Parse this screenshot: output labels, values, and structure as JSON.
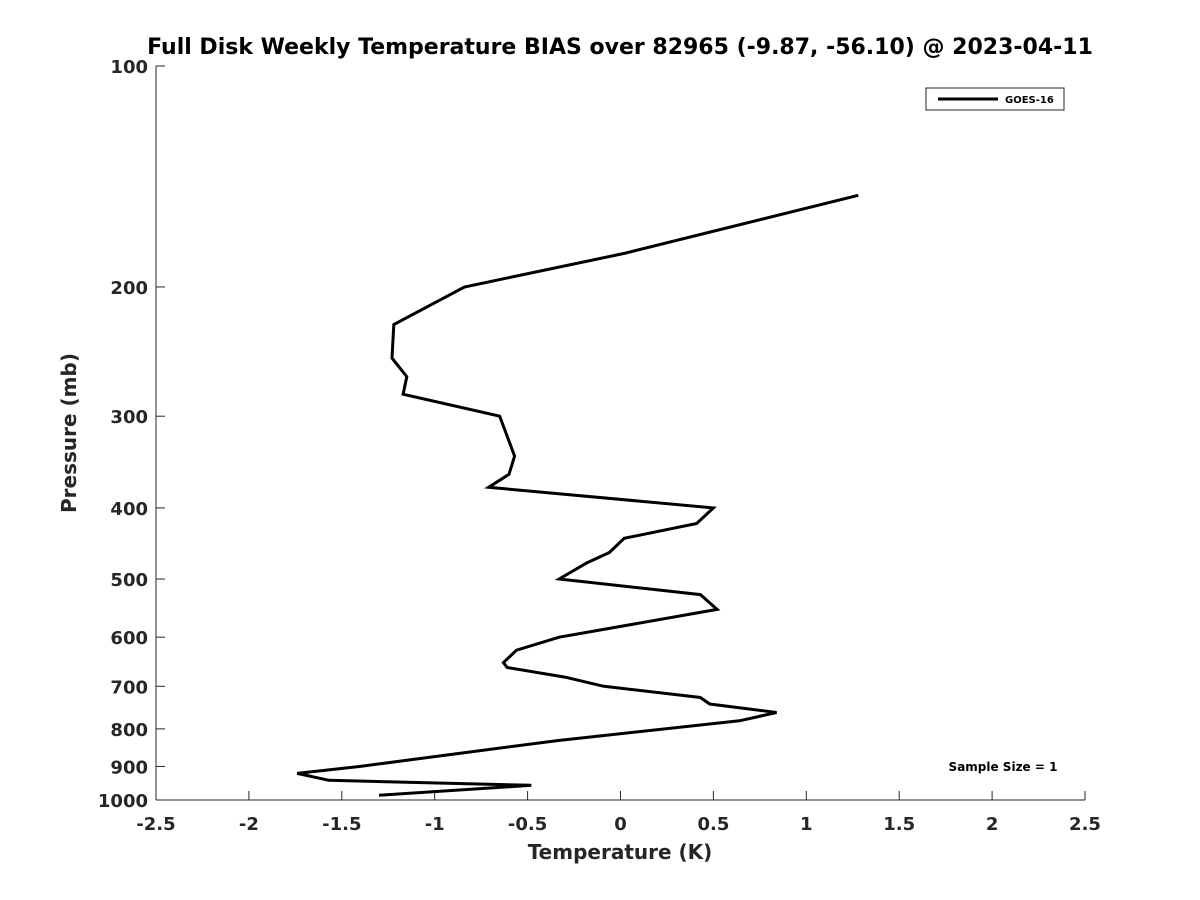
{
  "chart_data": {
    "type": "line",
    "title": "Full Disk Weekly Temperature BIAS over 82965 (-9.87, -56.10) @ 2023-04-11",
    "xlabel": "Temperature (K)",
    "ylabel": "Pressure (mb)",
    "xlim": [
      -2.5,
      2.5
    ],
    "ylim": [
      1000,
      100
    ],
    "yscale": "log",
    "y_reversed": true,
    "grid": false,
    "legend_position": "top-right",
    "x_ticks": [
      -2.5,
      -2,
      -1.5,
      -1,
      -0.5,
      0,
      0.5,
      1,
      1.5,
      2,
      2.5
    ],
    "x_tick_labels": [
      "-2.5",
      "-2",
      "-1.5",
      "-1",
      "-0.5",
      "0",
      "0.5",
      "1",
      "1.5",
      "2",
      "2.5"
    ],
    "y_ticks": [
      100,
      200,
      300,
      400,
      500,
      600,
      700,
      800,
      900,
      1000
    ],
    "y_tick_labels": [
      "100",
      "200",
      "300",
      "400",
      "500",
      "600",
      "700",
      "800",
      "900",
      "1000"
    ],
    "series": [
      {
        "name": "GOES-16",
        "color": "#000000",
        "points": [
          {
            "x": 1.28,
            "y": 150
          },
          {
            "x": 0.02,
            "y": 180
          },
          {
            "x": -0.84,
            "y": 200
          },
          {
            "x": -1.22,
            "y": 225
          },
          {
            "x": -1.23,
            "y": 250
          },
          {
            "x": -1.15,
            "y": 265
          },
          {
            "x": -1.17,
            "y": 280
          },
          {
            "x": -0.65,
            "y": 300
          },
          {
            "x": -0.57,
            "y": 340
          },
          {
            "x": -0.6,
            "y": 360
          },
          {
            "x": -0.71,
            "y": 375
          },
          {
            "x": 0.5,
            "y": 400
          },
          {
            "x": 0.41,
            "y": 420
          },
          {
            "x": 0.02,
            "y": 440
          },
          {
            "x": -0.06,
            "y": 460
          },
          {
            "x": -0.18,
            "y": 475
          },
          {
            "x": -0.33,
            "y": 500
          },
          {
            "x": 0.43,
            "y": 525
          },
          {
            "x": 0.52,
            "y": 550
          },
          {
            "x": -0.33,
            "y": 600
          },
          {
            "x": -0.56,
            "y": 625
          },
          {
            "x": -0.63,
            "y": 650
          },
          {
            "x": -0.61,
            "y": 660
          },
          {
            "x": -0.3,
            "y": 680
          },
          {
            "x": -0.09,
            "y": 700
          },
          {
            "x": 0.43,
            "y": 725
          },
          {
            "x": 0.48,
            "y": 740
          },
          {
            "x": 0.84,
            "y": 760
          },
          {
            "x": 0.64,
            "y": 780
          },
          {
            "x": -0.34,
            "y": 830
          },
          {
            "x": -0.96,
            "y": 870
          },
          {
            "x": -1.4,
            "y": 900
          },
          {
            "x": -1.74,
            "y": 920
          },
          {
            "x": -1.57,
            "y": 940
          },
          {
            "x": -0.48,
            "y": 955
          },
          {
            "x": -1.3,
            "y": 985
          }
        ]
      }
    ],
    "legend": [
      {
        "label": "GOES-16",
        "color": "#000000"
      }
    ],
    "annotations": [
      "Sample Size = 1"
    ]
  }
}
